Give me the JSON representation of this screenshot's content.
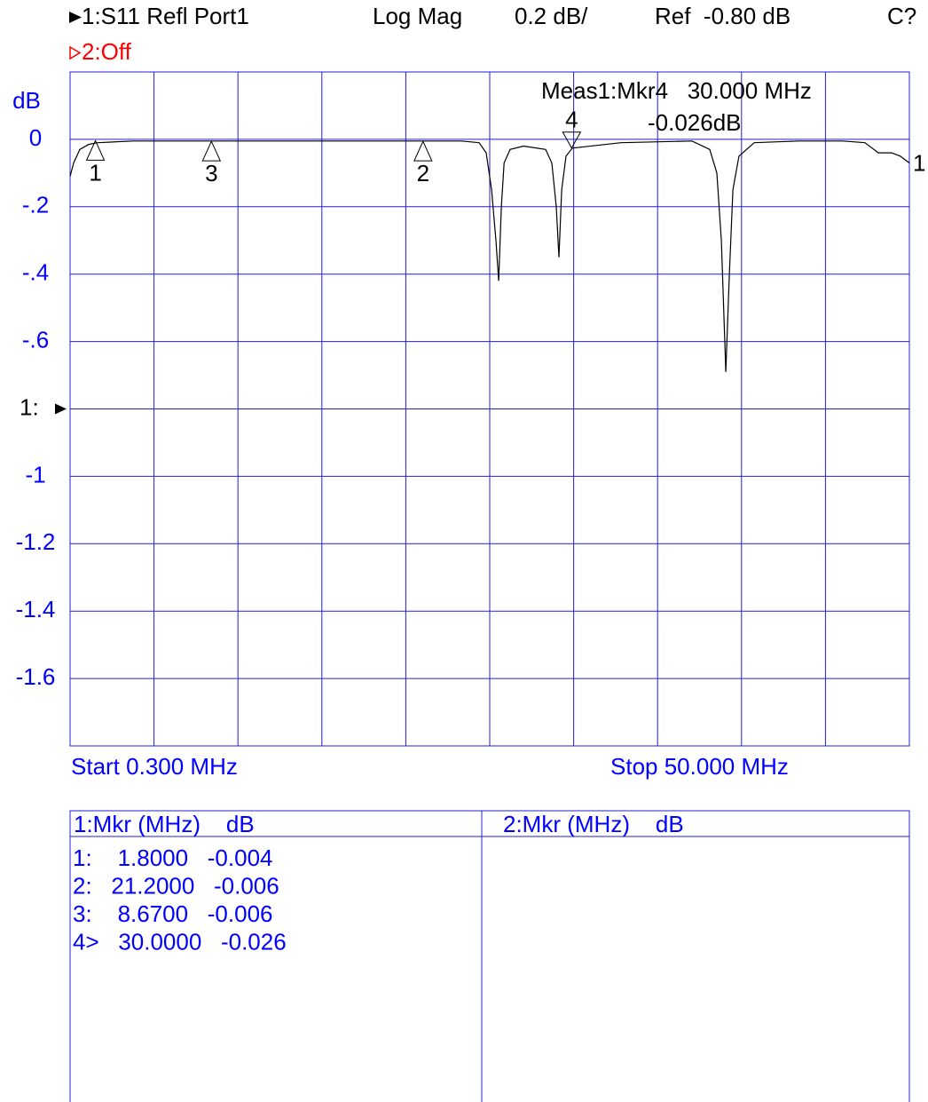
{
  "header": {
    "trace1": "1:S11 Refl Port1",
    "format": "Log Mag",
    "scale": "0.2 dB/",
    "ref": "Ref  -0.80 dB",
    "status": "C?",
    "trace2": "2:Off"
  },
  "chart_data": {
    "type": "line",
    "y_unit": "dB",
    "xlim": [
      0.3,
      50
    ],
    "ylim": [
      -1.8,
      0.2
    ],
    "x_divisions": 10,
    "yticks": [
      0,
      {
        "value": -0.2,
        "label": "-.2"
      },
      {
        "value": -0.4,
        "label": "-.4"
      },
      {
        "value": -0.6,
        "label": "-.6"
      },
      -1,
      -1.2,
      -1.4,
      -1.6
    ],
    "reference_level": -0.8,
    "reference_label": "1:",
    "start_label": "Start 0.300 MHz",
    "stop_label": "Stop 50.000 MHz",
    "trace_label": "1",
    "color": "#000000",
    "x": [
      0.3,
      0.51,
      0.88,
      1.4,
      1.93,
      4.03,
      9.28,
      14.54,
      19.79,
      23.47,
      24.52,
      24.94,
      25.26,
      25.52,
      25.68,
      25.84,
      26.0,
      26.36,
      27.15,
      28.46,
      28.83,
      29.09,
      29.25,
      29.41,
      29.67,
      30.04,
      32.93,
      37.13,
      38.18,
      38.6,
      38.87,
      39.13,
      39.34,
      39.55,
      39.91,
      40.81,
      43.43,
      46.06,
      47.37,
      48.16,
      48.95,
      49.47,
      50.0
    ],
    "values": [
      -0.11,
      -0.07,
      -0.03,
      -0.015,
      -0.01,
      -0.005,
      -0.005,
      -0.005,
      -0.005,
      -0.005,
      -0.01,
      -0.04,
      -0.15,
      -0.3,
      -0.42,
      -0.2,
      -0.07,
      -0.03,
      -0.02,
      -0.03,
      -0.07,
      -0.2,
      -0.35,
      -0.15,
      -0.05,
      -0.026,
      -0.01,
      -0.005,
      -0.03,
      -0.1,
      -0.3,
      -0.69,
      -0.4,
      -0.15,
      -0.05,
      -0.01,
      -0.005,
      -0.005,
      -0.01,
      -0.04,
      -0.04,
      -0.05,
      -0.07
    ],
    "markers": [
      {
        "label": "1",
        "x": 1.8,
        "value": -0.004,
        "active": false
      },
      {
        "label": "2",
        "x": 21.2,
        "value": -0.006,
        "active": false
      },
      {
        "label": "3",
        "x": 8.67,
        "value": -0.006,
        "active": false
      },
      {
        "label": "4",
        "x": 30.0,
        "value": -0.026,
        "active": true
      }
    ],
    "readout": [
      "Meas1:Mkr4   30.000 MHz",
      "-0.026dB"
    ]
  },
  "marker_table": {
    "headers": [
      "1:Mkr (MHz)    dB",
      "2:Mkr (MHz)    dB"
    ],
    "rows": [
      "1:    1.8000   -0.004",
      "2:   21.2000   -0.006",
      "3:    8.6700   -0.006",
      "4>   30.0000   -0.026"
    ]
  }
}
